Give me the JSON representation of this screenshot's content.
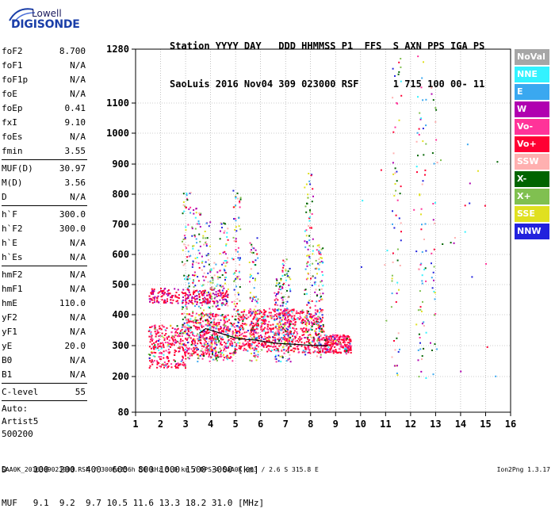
{
  "logo": {
    "line1": "Lowell",
    "line2": "DIGISONDE"
  },
  "header": {
    "line1": "Station YYYY DAY   DDD HHMMSS P1  FFS  S AXN PPS IGA PS",
    "line2": "SaoLuis 2016 Nov04 309 023000 RSF      1 715 100 00- 11"
  },
  "params": {
    "group1": [
      {
        "k": "foF2",
        "v": "8.700"
      },
      {
        "k": "foF1",
        "v": "N/A"
      },
      {
        "k": "foF1p",
        "v": "N/A"
      },
      {
        "k": "foE",
        "v": "N/A"
      },
      {
        "k": "foEp",
        "v": "0.41"
      },
      {
        "k": "fxI",
        "v": "9.10"
      },
      {
        "k": "foEs",
        "v": "N/A"
      },
      {
        "k": "fmin",
        "v": "3.55"
      }
    ],
    "group2": [
      {
        "k": "MUF(D)",
        "v": "30.97"
      },
      {
        "k": "M(D)",
        "v": "3.56"
      },
      {
        "k": "D",
        "v": "N/A"
      }
    ],
    "group3": [
      {
        "k": "h`F",
        "v": "300.0"
      },
      {
        "k": "h`F2",
        "v": "300.0"
      },
      {
        "k": "h`E",
        "v": "N/A"
      },
      {
        "k": "h`Es",
        "v": "N/A"
      }
    ],
    "group4": [
      {
        "k": "hmF2",
        "v": "N/A"
      },
      {
        "k": "hmF1",
        "v": "N/A"
      },
      {
        "k": "hmE",
        "v": "110.0"
      },
      {
        "k": "yF2",
        "v": "N/A"
      },
      {
        "k": "yF1",
        "v": "N/A"
      },
      {
        "k": "yE",
        "v": "20.0"
      },
      {
        "k": "B0",
        "v": "N/A"
      },
      {
        "k": "B1",
        "v": "N/A"
      }
    ],
    "group5": [
      {
        "k": "C-level",
        "v": "55"
      }
    ],
    "auto": [
      "Auto:",
      "Artist5",
      "500200"
    ]
  },
  "legend": [
    {
      "label": "NoVal",
      "color": "#a6a6a6"
    },
    {
      "label": "NNE",
      "color": "#33f2ff"
    },
    {
      "label": "E",
      "color": "#3aa8f0"
    },
    {
      "label": "W",
      "color": "#b000b0"
    },
    {
      "label": "Vo-",
      "color": "#ff3399"
    },
    {
      "label": "Vo+",
      "color": "#ff0033"
    },
    {
      "label": "SSW",
      "color": "#ffb0b0"
    },
    {
      "label": "X-",
      "color": "#006400"
    },
    {
      "label": "X+",
      "color": "#80c050"
    },
    {
      "label": "SSE",
      "color": "#e0e020"
    },
    {
      "label": "NNW",
      "color": "#2222dd"
    }
  ],
  "bottom": {
    "line1": "D     100  200  400  600  800 1000 1500 3000 [km]",
    "line2": "MUF   9.1  9.2  9.7 10.5 11.6 13.3 18.2 31.0 [MHz]"
  },
  "footer": {
    "left": "SAA0K_2016309023000.RSF / 300fx256h 50 kHz 5.0 km / DPS-4 SAA0K 903 / 2.6 S 315.8 E",
    "right": "Ion2Png 1.3.17"
  },
  "chart_data": {
    "type": "scatter",
    "x_ticks": [
      1,
      2,
      3,
      4,
      5,
      6,
      7,
      8,
      9,
      10,
      11,
      12,
      13,
      14,
      15,
      16
    ],
    "y_ticks": [
      80,
      200,
      300,
      400,
      500,
      600,
      700,
      800,
      900,
      1000,
      1100,
      1280
    ],
    "xlim": [
      1,
      16
    ],
    "ylim": [
      80,
      1280
    ],
    "y_scale": "nonlinear",
    "grid": true,
    "legend_position": "right",
    "trace": {
      "x": [
        3.55,
        3.8,
        4.2,
        4.6,
        5.0,
        5.4,
        5.8,
        6.2,
        6.6,
        7.0,
        7.4,
        7.8,
        8.2,
        8.7
      ],
      "y": [
        340,
        355,
        345,
        335,
        325,
        320,
        318,
        312,
        308,
        306,
        304,
        302,
        300,
        300
      ]
    }
  }
}
